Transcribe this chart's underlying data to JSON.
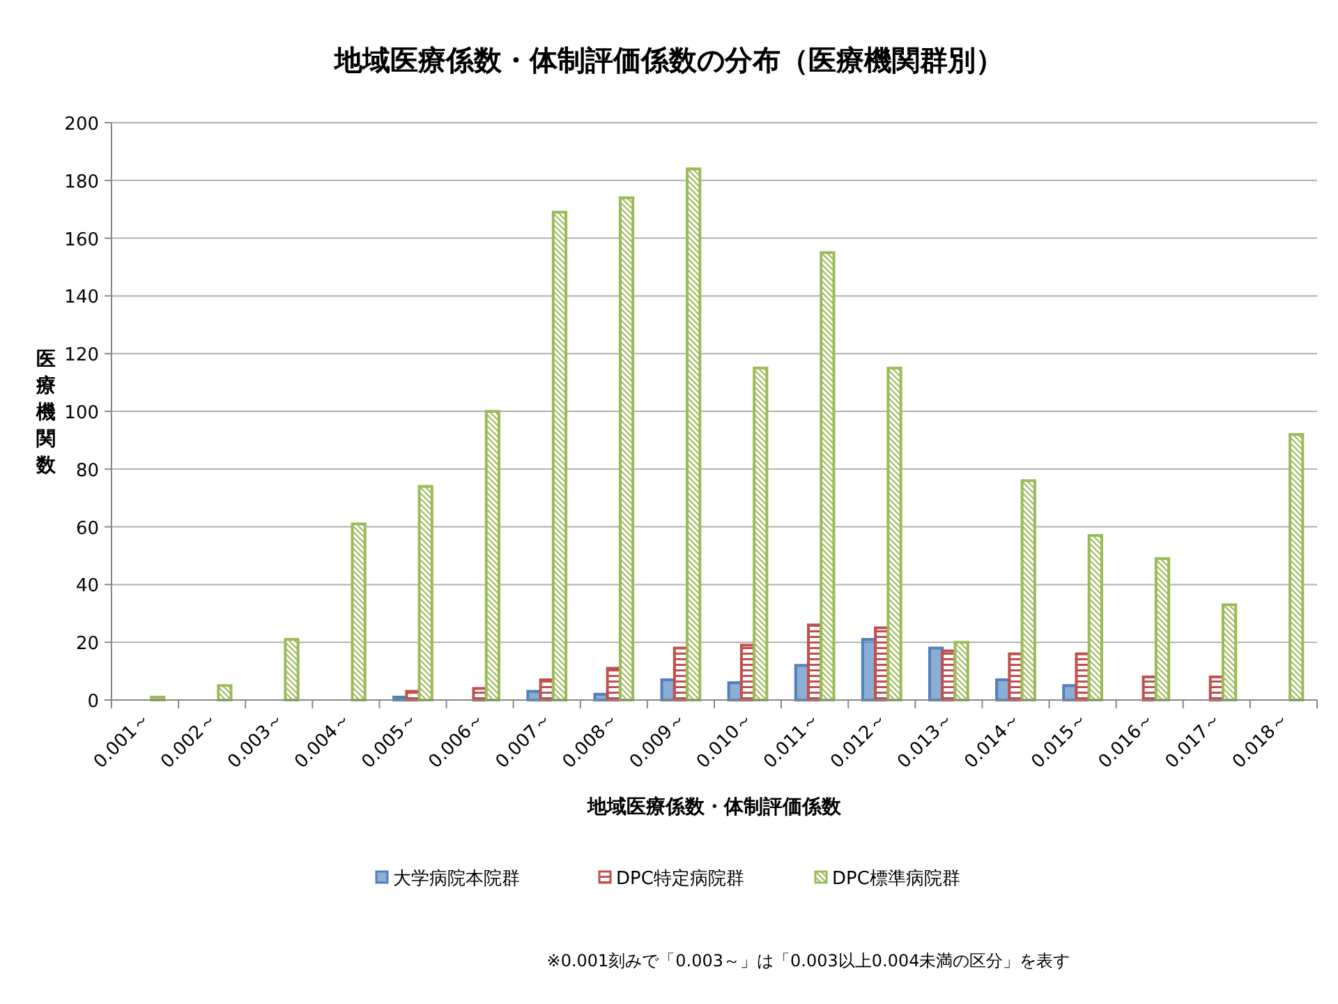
{
  "chart_data": {
    "type": "bar",
    "title": "地域医療係数・体制評価係数の分布（医療機関群別）",
    "xlabel": "地域医療係数・体制評価係数",
    "ylabel": "医療機関数",
    "categories": [
      "0.001～",
      "0.002～",
      "0.003～",
      "0.004～",
      "0.005～",
      "0.006～",
      "0.007～",
      "0.008～",
      "0.009～",
      "0.010～",
      "0.011～",
      "0.012～",
      "0.013～",
      "0.014～",
      "0.015～",
      "0.016～",
      "0.017～",
      "0.018～"
    ],
    "series": [
      {
        "name": "大学病院本院群",
        "color": "#4f81bd",
        "values": [
          0,
          0,
          0,
          0,
          1,
          0,
          3,
          2,
          7,
          6,
          12,
          21,
          18,
          7,
          5,
          0,
          0,
          0
        ]
      },
      {
        "name": "DPC特定病院群",
        "color": "#c0504d",
        "values": [
          0,
          0,
          0,
          0,
          3,
          4,
          7,
          11,
          18,
          19,
          26,
          25,
          17,
          16,
          16,
          8,
          8,
          0
        ]
      },
      {
        "name": "DPC標準病院群",
        "color": "#9bbb59",
        "values": [
          1,
          5,
          21,
          61,
          74,
          100,
          169,
          174,
          184,
          115,
          155,
          115,
          20,
          76,
          57,
          49,
          33,
          92
        ]
      }
    ],
    "ylim": [
      0,
      200
    ],
    "yticks": [
      0,
      20,
      40,
      60,
      80,
      100,
      120,
      140,
      160,
      180,
      200
    ],
    "grid": "y",
    "legend": "bottom",
    "annotations": [
      "※0.001刻みで「0.003～」は「0.003以上0.004未満の区分」を表す"
    ]
  }
}
